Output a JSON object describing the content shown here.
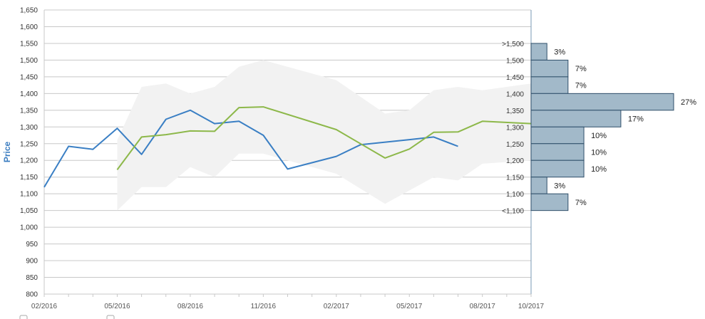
{
  "chart_data": {
    "type": "line",
    "xlabel": "",
    "ylabel": "Price",
    "ylim": [
      800,
      1650
    ],
    "yticks": [
      800,
      850,
      900,
      950,
      1000,
      1050,
      1100,
      1150,
      1200,
      1250,
      1300,
      1350,
      1400,
      1450,
      1500,
      1550,
      1600,
      1650
    ],
    "ytick_labels": [
      "800",
      "850",
      "900",
      "950",
      "1,000",
      "1,050",
      "1,100",
      "1,150",
      "1,200",
      "1,250",
      "1,300",
      "1,350",
      "1,400",
      "1,450",
      "1,500",
      "1,550",
      "1,600",
      "1,650"
    ],
    "xlim": [
      "2016-02",
      "2017-10"
    ],
    "xtick_labels": [
      "02/2016",
      "05/2016",
      "08/2016",
      "11/2016",
      "02/2017",
      "05/2017",
      "08/2017",
      "10/2017"
    ],
    "xticks": [
      "2016-02",
      "2016-05",
      "2016-08",
      "2016-11",
      "2017-02",
      "2017-05",
      "2017-08",
      "2017-10"
    ],
    "grid": true,
    "colors": {
      "series1": "#3a7fc4",
      "series2": "#8db84a",
      "band": "#f2f2f2",
      "hist_fill": "#a2b9c9",
      "hist_stroke": "#2f4f6a",
      "ylabel": "#3a7cc0"
    },
    "series": [
      {
        "x": [
          "2016-02",
          "2016-03",
          "2016-04",
          "2016-05",
          "2016-06",
          "2016-07",
          "2016-08",
          "2016-09",
          "2016-10",
          "2016-11",
          "2016-12",
          "2017-02",
          "2017-03",
          "2017-05",
          "2017-06",
          "2017-07"
        ],
        "values": [
          1120,
          1242,
          1233,
          1296,
          1218,
          1323,
          1350,
          1310,
          1317,
          1275,
          1174,
          1212,
          1247,
          1262,
          1270,
          1242
        ]
      },
      {
        "x": [
          "2016-05",
          "2016-06",
          "2016-07",
          "2016-08",
          "2016-09",
          "2016-10",
          "2016-11",
          "2017-02",
          "2017-04",
          "2017-05",
          "2017-06",
          "2017-07",
          "2017-08",
          "2017-10"
        ],
        "values": [
          1172,
          1270,
          1277,
          1288,
          1287,
          1358,
          1360,
          1292,
          1207,
          1234,
          1284,
          1285,
          1317,
          1310
        ]
      }
    ],
    "band": {
      "x": [
        "2016-05",
        "2016-06",
        "2016-07",
        "2016-08",
        "2016-09",
        "2016-10",
        "2016-11",
        "2017-02",
        "2017-04",
        "2017-05",
        "2017-06",
        "2017-07",
        "2017-08",
        "2017-10"
      ],
      "upper": [
        1260,
        1420,
        1430,
        1400,
        1420,
        1480,
        1500,
        1440,
        1340,
        1350,
        1410,
        1420,
        1410,
        1430
      ],
      "lower": [
        1050,
        1120,
        1120,
        1180,
        1150,
        1220,
        1220,
        1160,
        1070,
        1110,
        1150,
        1140,
        1190,
        1200
      ]
    },
    "histogram": {
      "bins": [
        {
          "label": ">1,500",
          "from": 1500,
          "to": 1550,
          "percent": 3
        },
        {
          "label": "1,500",
          "from": 1450,
          "to": 1500,
          "percent": 7
        },
        {
          "label": "1,450",
          "from": 1400,
          "to": 1450,
          "percent": 7
        },
        {
          "label": "1,400",
          "from": 1350,
          "to": 1400,
          "percent": 27
        },
        {
          "label": "1,350",
          "from": 1300,
          "to": 1350,
          "percent": 17
        },
        {
          "label": "1,300",
          "from": 1250,
          "to": 1300,
          "percent": 10
        },
        {
          "label": "1,250",
          "from": 1200,
          "to": 1250,
          "percent": 10
        },
        {
          "label": "1,200",
          "from": 1150,
          "to": 1200,
          "percent": 10
        },
        {
          "label": "1,150",
          "from": 1100,
          "to": 1150,
          "percent": 3
        },
        {
          "label": "1,100",
          "from": 1050,
          "to": 1100,
          "percent": 7
        }
      ],
      "extra_labels": [
        {
          "label": "<1,100",
          "at": 1050
        }
      ],
      "percent_suffix": "%"
    }
  }
}
